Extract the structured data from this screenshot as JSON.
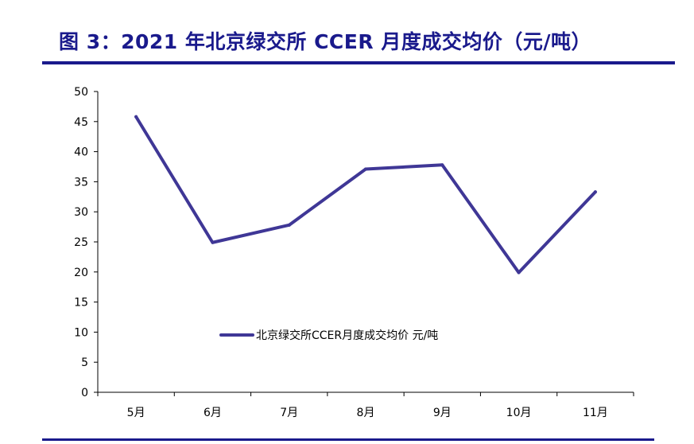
{
  "header": {
    "title": "图 3：2021 年北京绿交所 CCER 月度成交均价（元/吨）"
  },
  "colors": {
    "accent": "#1a1a8c",
    "series": "#3f3796"
  },
  "chart_data": {
    "type": "line",
    "title": "图 3：2021 年北京绿交所 CCER 月度成交均价（元/吨）",
    "xlabel": "",
    "ylabel": "",
    "ylim": [
      0,
      50
    ],
    "yticks": [
      "0",
      "5",
      "10",
      "15",
      "20",
      "25",
      "30",
      "35",
      "40",
      "45",
      "50"
    ],
    "categories": [
      "5月",
      "6月",
      "7月",
      "8月",
      "9月",
      "10月",
      "11月"
    ],
    "series": [
      {
        "name": "北京绿交所CCER月度成交均价 元/吨",
        "values": [
          45.8,
          24.9,
          27.8,
          37.1,
          37.8,
          19.9,
          33.3
        ]
      }
    ],
    "grid": false,
    "legend_position": "center"
  }
}
